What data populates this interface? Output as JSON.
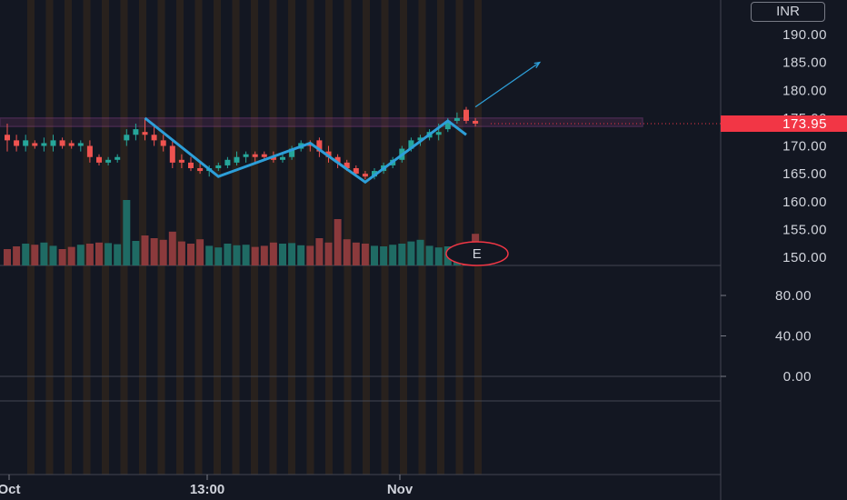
{
  "currency": "INR",
  "price_tag": {
    "value": "173.95",
    "color": "#f23645"
  },
  "earnings_marker": "E",
  "colors": {
    "up": "#26a69a",
    "down": "#ef5350",
    "vol_up": "#1f6b64",
    "vol_down": "#8b3a3c",
    "background": "#131722",
    "session_band": "#3a2a1a",
    "trendline": "#2d9fd9",
    "zone": "#a04a9a"
  },
  "chart_data": [
    {
      "type": "candlestick",
      "title": "",
      "y_axis_labels": [
        "190.00",
        "185.00",
        "180.00",
        "175.00",
        "170.00",
        "165.00",
        "160.00",
        "155.00",
        "150.00"
      ],
      "ylim": [
        150,
        195
      ],
      "x_labels": [
        "Oct",
        "13:00",
        "Nov"
      ],
      "horizontal_zone": [
        173.5,
        175
      ],
      "candles": [
        [
          172,
          174,
          169,
          171
        ],
        [
          171,
          172,
          169,
          170
        ],
        [
          170,
          172,
          169,
          171
        ],
        [
          170.5,
          171,
          169.5,
          170
        ],
        [
          170,
          171.5,
          169,
          170.5
        ],
        [
          170,
          172,
          169,
          171
        ],
        [
          171,
          171.5,
          169.5,
          170
        ],
        [
          170.5,
          171,
          169.5,
          170
        ],
        [
          170,
          171,
          169,
          170.5
        ],
        [
          170,
          171,
          167,
          168
        ],
        [
          168,
          168.5,
          166.5,
          167
        ],
        [
          167,
          168,
          166.5,
          167.5
        ],
        [
          167.5,
          168.5,
          167,
          168
        ],
        [
          171,
          173,
          170,
          172
        ],
        [
          172,
          174,
          171,
          173
        ],
        [
          172.5,
          175,
          171,
          172
        ],
        [
          172,
          174,
          170,
          171
        ],
        [
          171,
          172,
          169,
          170
        ],
        [
          170,
          171,
          166,
          167
        ],
        [
          167.5,
          168.5,
          166,
          167
        ],
        [
          167,
          168,
          165.5,
          166
        ],
        [
          166,
          167,
          165,
          165.5
        ],
        [
          165.5,
          166.5,
          164.5,
          166
        ],
        [
          166,
          167,
          165.5,
          166.5
        ],
        [
          166.5,
          168,
          166,
          167.5
        ],
        [
          167,
          169,
          166.5,
          168
        ],
        [
          168,
          169,
          167,
          168.5
        ],
        [
          168.5,
          169,
          167,
          168
        ],
        [
          168.5,
          169,
          167.5,
          168
        ],
        [
          168,
          169,
          167,
          167.5
        ],
        [
          167.5,
          168.5,
          167,
          168
        ],
        [
          168,
          170,
          167.5,
          169.5
        ],
        [
          169.5,
          171,
          169,
          170.5
        ],
        [
          170.5,
          171,
          169,
          170
        ],
        [
          171,
          171.5,
          168,
          169
        ],
        [
          169,
          170,
          167,
          168
        ],
        [
          168,
          168.5,
          166,
          167
        ],
        [
          167,
          167.5,
          165.5,
          166
        ],
        [
          166,
          166.5,
          164.5,
          165
        ],
        [
          165,
          165.5,
          164,
          164.5
        ],
        [
          164.5,
          166,
          164,
          165.5
        ],
        [
          165.5,
          167,
          165,
          166.5
        ],
        [
          166.5,
          168,
          166,
          167.5
        ],
        [
          167.5,
          170,
          167,
          169.5
        ],
        [
          169.5,
          171.5,
          169,
          171
        ],
        [
          171,
          172,
          170,
          171.5
        ],
        [
          171.5,
          173,
          171,
          172.5
        ],
        [
          172,
          174,
          171,
          172.5
        ],
        [
          173,
          175,
          172.5,
          174.5
        ],
        [
          174.5,
          176,
          174,
          175
        ],
        [
          176.5,
          177,
          174,
          174.5
        ],
        [
          174.5,
          175,
          173.5,
          174
        ]
      ],
      "volumes": [
        30,
        35,
        40,
        38,
        42,
        36,
        30,
        34,
        38,
        40,
        42,
        41,
        39,
        120,
        45,
        55,
        50,
        47,
        62,
        44,
        40,
        48,
        36,
        33,
        40,
        37,
        38,
        34,
        36,
        42,
        40,
        41,
        37,
        36,
        50,
        42,
        85,
        48,
        42,
        40,
        36,
        35,
        38,
        40,
        44,
        47,
        36,
        33,
        35,
        34,
        40,
        58
      ],
      "zigzag": [
        {
          "i": 15,
          "p": 175
        },
        {
          "i": 23,
          "p": 164.5
        },
        {
          "i": 33,
          "p": 170.5
        },
        {
          "i": 39,
          "p": 163.5
        },
        {
          "i": 48,
          "p": 174.5
        },
        {
          "i": 50,
          "p": 172
        }
      ],
      "projection": [
        {
          "i": 51,
          "p": 177
        },
        {
          "i": 58,
          "p": 185
        }
      ]
    },
    {
      "type": "indicator",
      "y_axis_labels": [
        "80.00",
        "40.00",
        "0.00"
      ],
      "ylim": [
        0,
        100
      ]
    }
  ]
}
